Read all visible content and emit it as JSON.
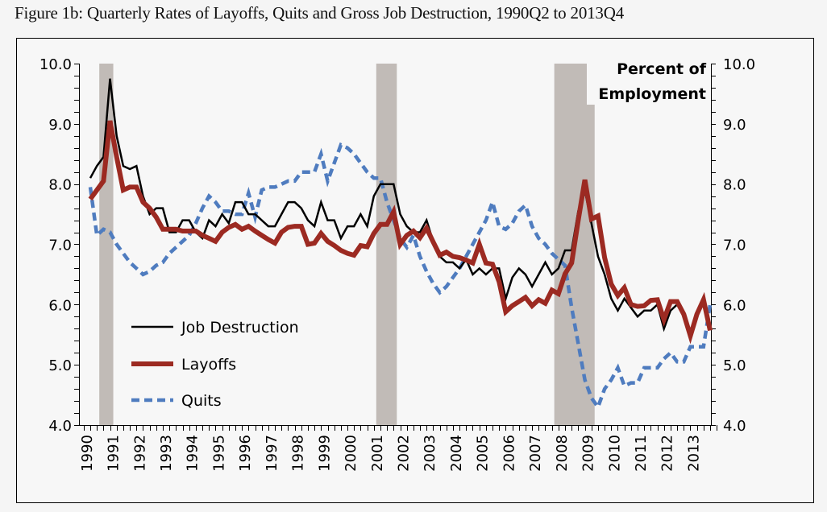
{
  "chart_data": {
    "type": "line",
    "title": "Figure 1b:  Quarterly Rates of Layoffs, Quits and Gross Job Destruction, 1990Q2 to 2013Q4",
    "ylabel": "Percent of Employment",
    "ylabel_lines": [
      "Percent of",
      "Employment"
    ],
    "ylim": [
      4.0,
      10.0
    ],
    "yticks": [
      "4.0",
      "5.0",
      "6.0",
      "7.0",
      "8.0",
      "9.0",
      "10.0"
    ],
    "y_axis_sides": "left and right",
    "x_start": "1990Q2",
    "x_end": "2013Q4",
    "frequency": "quarterly",
    "xtick_labels": [
      "1990",
      "1991",
      "1992",
      "1993",
      "1994",
      "1995",
      "1996",
      "1997",
      "1998",
      "1999",
      "2000",
      "2001",
      "2002",
      "2003",
      "2004",
      "2005",
      "2006",
      "2007",
      "2008",
      "2009",
      "2010",
      "2011",
      "2012",
      "2013"
    ],
    "grid": false,
    "legend_position": "bottom-left",
    "recessions": [
      [
        "1990Q3",
        "1991Q1"
      ],
      [
        "2001Q1",
        "2001Q4"
      ],
      [
        "2007Q4",
        "2009Q2"
      ]
    ],
    "recession_color": "#c1bbb7",
    "series": [
      {
        "name": "Job Destruction",
        "color": "#000000",
        "style": "solid-thin",
        "values": [
          8.1,
          8.3,
          8.45,
          9.75,
          8.8,
          8.3,
          8.25,
          8.3,
          7.8,
          7.5,
          7.6,
          7.6,
          7.2,
          7.2,
          7.4,
          7.4,
          7.2,
          7.1,
          7.4,
          7.3,
          7.5,
          7.35,
          7.7,
          7.7,
          7.5,
          7.5,
          7.4,
          7.3,
          7.3,
          7.5,
          7.7,
          7.7,
          7.6,
          7.4,
          7.3,
          7.7,
          7.4,
          7.4,
          7.1,
          7.3,
          7.3,
          7.5,
          7.3,
          7.8,
          8.0,
          8.0,
          8.0,
          7.5,
          7.3,
          7.2,
          7.2,
          7.4,
          7.05,
          6.8,
          6.7,
          6.7,
          6.6,
          6.75,
          6.5,
          6.6,
          6.5,
          6.6,
          6.6,
          6.1,
          6.45,
          6.6,
          6.5,
          6.3,
          6.5,
          6.7,
          6.5,
          6.6,
          6.9,
          6.9,
          7.55,
          7.9,
          7.35,
          6.8,
          6.5,
          6.1,
          5.9,
          6.1,
          5.95,
          5.8,
          5.9,
          5.9,
          6.0,
          5.6,
          5.9,
          6.0,
          5.8,
          5.5,
          5.85,
          6.1,
          5.6
        ]
      },
      {
        "name": "Layoffs",
        "color": "#9c2a22",
        "style": "solid-thick",
        "values": [
          7.75,
          7.9,
          8.05,
          9.05,
          8.45,
          7.9,
          7.95,
          7.95,
          7.7,
          7.6,
          7.45,
          7.25,
          7.25,
          7.25,
          7.22,
          7.22,
          7.22,
          7.15,
          7.1,
          7.05,
          7.2,
          7.28,
          7.33,
          7.25,
          7.3,
          7.22,
          7.15,
          7.08,
          7.02,
          7.2,
          7.28,
          7.3,
          7.3,
          7.0,
          7.02,
          7.18,
          7.05,
          6.98,
          6.9,
          6.85,
          6.82,
          6.98,
          6.96,
          7.18,
          7.33,
          7.33,
          7.54,
          7.0,
          7.15,
          7.22,
          7.11,
          7.27,
          7.04,
          6.82,
          6.87,
          6.8,
          6.78,
          6.74,
          6.69,
          7.0,
          6.69,
          6.67,
          6.38,
          5.88,
          5.98,
          6.05,
          6.12,
          5.98,
          6.08,
          6.02,
          6.24,
          6.18,
          6.51,
          6.69,
          7.4,
          8.07,
          7.42,
          7.47,
          6.78,
          6.34,
          6.15,
          6.28,
          6.0,
          5.97,
          5.98,
          6.07,
          6.08,
          5.75,
          6.05,
          6.05,
          5.84,
          5.48,
          5.84,
          6.08,
          5.57
        ]
      },
      {
        "name": "Quits",
        "color": "#4f7cbf",
        "style": "dashed",
        "values": [
          7.95,
          7.15,
          7.25,
          7.2,
          7.0,
          6.85,
          6.7,
          6.6,
          6.5,
          6.55,
          6.65,
          6.7,
          6.85,
          6.95,
          7.05,
          7.15,
          7.35,
          7.6,
          7.8,
          7.7,
          7.55,
          7.55,
          7.5,
          7.5,
          7.85,
          7.45,
          7.9,
          7.95,
          7.95,
          8.0,
          8.05,
          8.05,
          8.2,
          8.2,
          8.2,
          8.5,
          8.05,
          8.35,
          8.65,
          8.6,
          8.5,
          8.35,
          8.2,
          8.1,
          8.1,
          7.7,
          7.4,
          7.1,
          6.95,
          7.15,
          6.8,
          6.55,
          6.35,
          6.2,
          6.3,
          6.45,
          6.6,
          6.8,
          7.0,
          7.2,
          7.4,
          7.7,
          7.3,
          7.25,
          7.35,
          7.55,
          7.65,
          7.3,
          7.1,
          7.0,
          6.85,
          6.75,
          6.65,
          5.95,
          5.35,
          4.75,
          4.45,
          4.3,
          4.6,
          4.75,
          4.95,
          4.65,
          4.7,
          4.7,
          4.95,
          4.95,
          4.95,
          5.1,
          5.2,
          5.05,
          5.05,
          5.3,
          5.3,
          5.3,
          6.0
        ]
      }
    ]
  }
}
